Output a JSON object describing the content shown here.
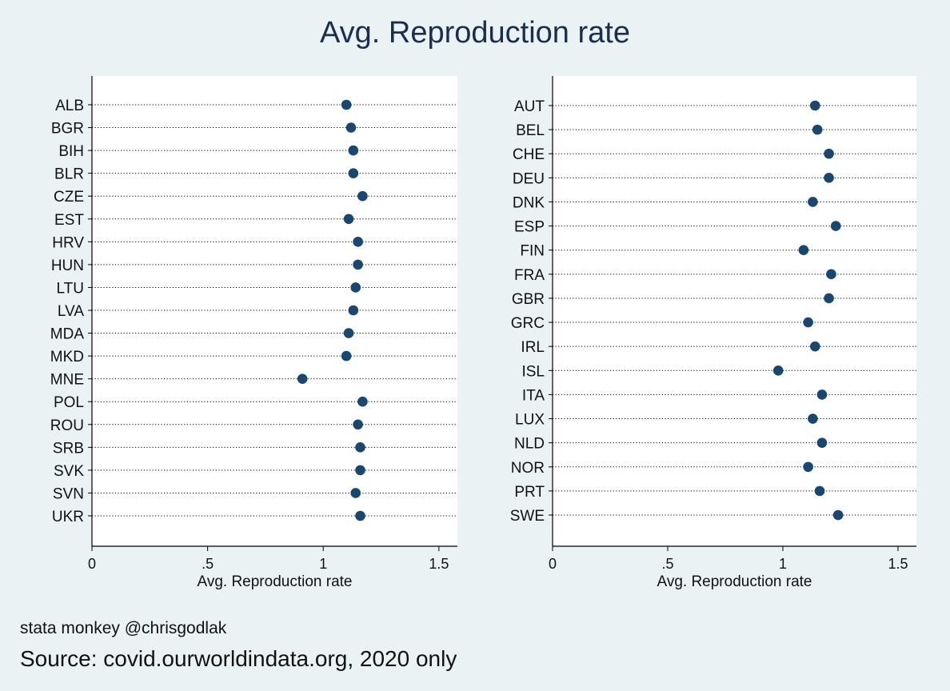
{
  "figure": {
    "title": "Avg. Reproduction rate",
    "note": "stata monkey @chrisgodlak",
    "caption": "Source: covid.ourworldindata.org, 2020 only"
  },
  "colors": {
    "background": "#eaf2f3",
    "plot_background": "#ffffff",
    "marker": "#1a476f",
    "title": "#1a2e4d"
  },
  "chart_data": [
    {
      "type": "scatter",
      "orientation": "horizontal dot plot",
      "xlabel": "Avg. Reproduction rate",
      "ylabel": "",
      "xlim": [
        0,
        1.58
      ],
      "xticks": [
        0,
        0.5,
        1,
        1.5
      ],
      "xtick_labels": [
        "0",
        ".5",
        "1",
        "1.5"
      ],
      "grid": "dotted horizontal guide lines",
      "categories": [
        "ALB",
        "BGR",
        "BIH",
        "BLR",
        "CZE",
        "EST",
        "HRV",
        "HUN",
        "LTU",
        "LVA",
        "MDA",
        "MKD",
        "MNE",
        "POL",
        "ROU",
        "SRB",
        "SVK",
        "SVN",
        "UKR"
      ],
      "values": [
        1.1,
        1.12,
        1.13,
        1.13,
        1.17,
        1.11,
        1.15,
        1.15,
        1.14,
        1.13,
        1.11,
        1.1,
        0.91,
        1.17,
        1.15,
        1.16,
        1.16,
        1.14,
        1.16
      ]
    },
    {
      "type": "scatter",
      "orientation": "horizontal dot plot",
      "xlabel": "Avg. Reproduction rate",
      "ylabel": "",
      "xlim": [
        0,
        1.58
      ],
      "xticks": [
        0,
        0.5,
        1,
        1.5
      ],
      "xtick_labels": [
        "0",
        ".5",
        "1",
        "1.5"
      ],
      "grid": "dotted horizontal guide lines",
      "categories": [
        "AUT",
        "BEL",
        "CHE",
        "DEU",
        "DNK",
        "ESP",
        "FIN",
        "FRA",
        "GBR",
        "GRC",
        "IRL",
        "ISL",
        "ITA",
        "LUX",
        "NLD",
        "NOR",
        "PRT",
        "SWE"
      ],
      "values": [
        1.14,
        1.15,
        1.2,
        1.2,
        1.13,
        1.23,
        1.09,
        1.21,
        1.2,
        1.11,
        1.14,
        0.98,
        1.17,
        1.13,
        1.17,
        1.11,
        1.16,
        1.24
      ]
    }
  ]
}
